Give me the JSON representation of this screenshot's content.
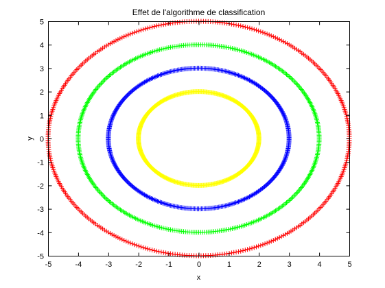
{
  "chart_data": {
    "type": "scatter",
    "title": "Effet de l'algorithme de classification",
    "xlabel": "x",
    "ylabel": "y",
    "xlim": [
      -5,
      5
    ],
    "ylim": [
      -5,
      5
    ],
    "xticks": [
      -5,
      -4,
      -3,
      -2,
      -1,
      0,
      1,
      2,
      3,
      4,
      5
    ],
    "yticks": [
      -5,
      -4,
      -3,
      -2,
      -1,
      0,
      1,
      2,
      3,
      4,
      5
    ],
    "grid": false,
    "marker": "+",
    "series": [
      {
        "radius": 2,
        "color": "#ffff00",
        "points": 400
      },
      {
        "radius": 3,
        "color": "#0000ff",
        "points": 400
      },
      {
        "radius": 4,
        "color": "#00ff00",
        "points": 400
      },
      {
        "radius": 5,
        "color": "#ff0000",
        "points": 400
      }
    ]
  }
}
